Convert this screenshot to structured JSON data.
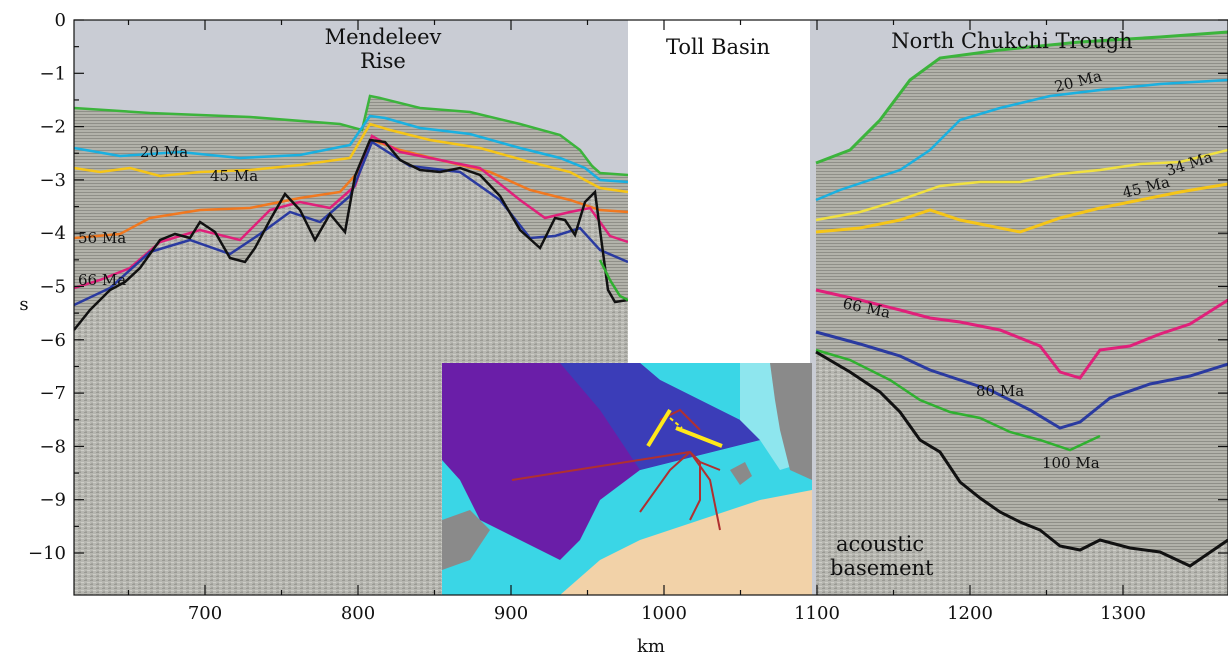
{
  "axes": {
    "x_label": "km",
    "y_label": "s",
    "x_ticks": [
      "700",
      "800",
      "900",
      "1000",
      "1100",
      "1200",
      "1300"
    ],
    "y_ticks": [
      "0",
      "−1",
      "−2",
      "−3",
      "−4",
      "−5",
      "−6",
      "−7",
      "−8",
      "−9",
      "−10"
    ]
  },
  "regions": {
    "mendeleev_line1": "Mendeleev",
    "mendeleev_line2": "Rise",
    "toll": "Toll Basin",
    "chukchi": "North Chukchi Trough"
  },
  "horizon_labels_left": {
    "ma20": "20 Ma",
    "ma45": "45 Ma",
    "ma56": "56 Ma",
    "ma66": "66 Ma"
  },
  "horizon_labels_right": {
    "ma20": "20 Ma",
    "ma34": "34 Ma",
    "ma45": "45 Ma",
    "ma66": "66 Ma",
    "ma80": "80 Ma",
    "ma100": "100 Ma"
  },
  "basement_line1": "acoustic",
  "basement_line2": "basement",
  "colors": {
    "water": "#c9ccd4",
    "seismic": "#b6b6b0",
    "horizon_20ma": "#1ab0e0",
    "horizon_34ma": "#f0e040",
    "horizon_45ma": "#f5c518",
    "horizon_56ma": "#f07820",
    "horizon_66ma": "#e0207a",
    "horizon_80ma": "#2a3aa0",
    "horizon_100ma": "#30b030",
    "seafloor": "#3cb43c",
    "basement": "#111111"
  },
  "inset_map": {
    "deep_basin": "#6a1ea8",
    "shelf": "#3ad6e6",
    "coast": "#f2d2a8",
    "land": "#8a8a8a",
    "selected_profile": "#ffe81a",
    "other_profiles": "#b03030"
  }
}
